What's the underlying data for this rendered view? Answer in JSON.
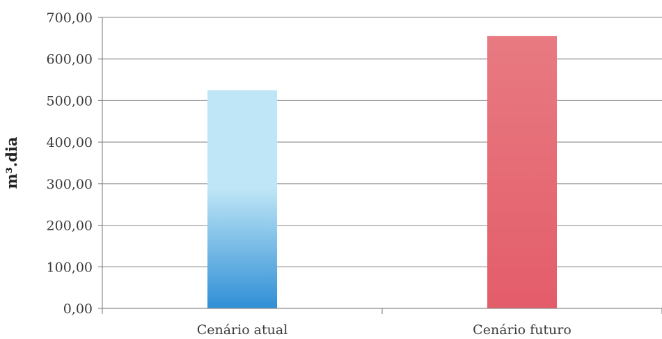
{
  "chart_data": {
    "type": "bar",
    "categories": [
      "Cenário atual",
      "Cenário futuro"
    ],
    "values": [
      525,
      655
    ],
    "title": "",
    "xlabel": "",
    "ylabel": "m³.dia",
    "ylim": [
      0,
      700
    ],
    "yticks": [
      "0,00",
      "100,00",
      "200,00",
      "300,00",
      "400,00",
      "500,00",
      "600,00",
      "700,00"
    ],
    "ytick_values": [
      0,
      100,
      200,
      300,
      400,
      500,
      600,
      700
    ],
    "grid": true,
    "legend": "none",
    "bar_colors": [
      {
        "top": "#bfe6f6",
        "bottom": "#2f8fd6"
      },
      {
        "top": "#e87a82",
        "bottom": "#e35d69"
      }
    ],
    "gridline_color": "#9a9a9a"
  }
}
